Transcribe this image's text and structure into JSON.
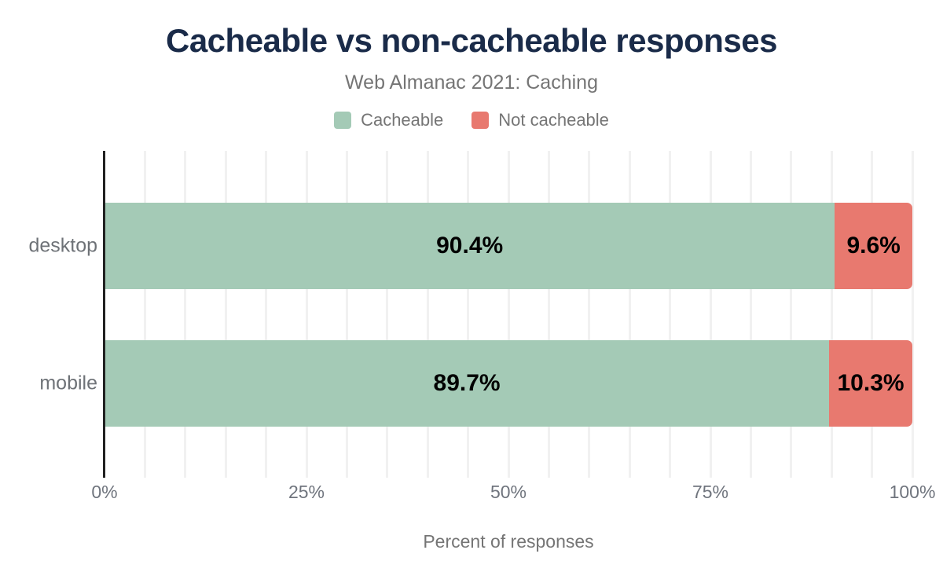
{
  "chart_data": {
    "type": "bar",
    "orientation": "horizontal",
    "stacked": true,
    "title": "Cacheable vs non-cacheable responses",
    "subtitle": "Web Almanac 2021: Caching",
    "xlabel": "Percent of responses",
    "categories": [
      "desktop",
      "mobile"
    ],
    "series": [
      {
        "name": "Cacheable",
        "color": "#a4cab6",
        "values": [
          90.4,
          89.7
        ]
      },
      {
        "name": "Not cacheable",
        "color": "#e8796f",
        "values": [
          9.6,
          10.3
        ]
      }
    ],
    "data_labels": [
      [
        "90.4%",
        "9.6%"
      ],
      [
        "89.7%",
        "10.3%"
      ]
    ],
    "x_ticks": [
      {
        "label": "0%",
        "value": 0
      },
      {
        "label": "25%",
        "value": 25
      },
      {
        "label": "50%",
        "value": 50
      },
      {
        "label": "75%",
        "value": 75
      },
      {
        "label": "100%",
        "value": 100
      }
    ],
    "xlim": [
      0,
      100
    ],
    "grid": true,
    "grid_interval": 5,
    "legend_position": "top"
  },
  "colors": {
    "title_text": "#1a2b49",
    "muted_text": "#757575",
    "tick_text": "#6f747d",
    "category_text": "#6e7277",
    "bar_label_text": "#000000",
    "axis_line": "#212121",
    "gridline": "#f1f1f1",
    "cacheable": "#a4cab6",
    "not_cacheable": "#e8796f"
  }
}
